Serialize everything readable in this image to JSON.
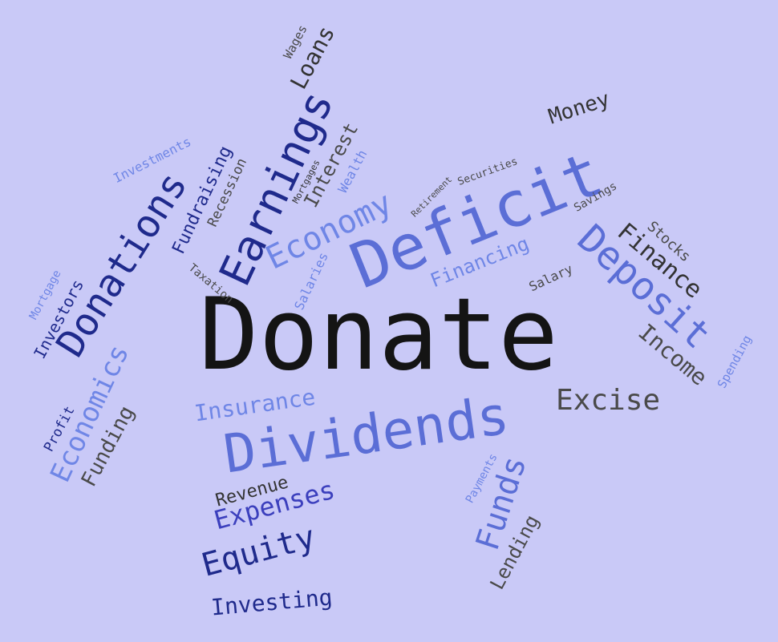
{
  "colors": {
    "background": "#c9c9f7",
    "black": "#141414",
    "navy": "#1f2a8c",
    "blue": "#3b3fbd",
    "mid": "#5b6ed6",
    "light": "#6f86e6",
    "gray": "#4a4a4a"
  },
  "words": {
    "donate": "Donate",
    "deficit": "Deficit",
    "dividends": "Dividends",
    "donations": "Donations",
    "earnings": "Earnings",
    "economy": "Economy",
    "deposit": "Deposit",
    "economics": "Economics",
    "funds": "Funds",
    "excise": "Excise",
    "finance": "Finance",
    "income": "Income",
    "money": "Money",
    "loans": "Loans",
    "wages": "Wages",
    "interest": "Interest",
    "wealth": "Wealth",
    "fundraising": "Fundraising",
    "recession": "Recession",
    "investments": "Investments",
    "mortgages": "Mortgages",
    "retirement": "Retirement",
    "securities": "Securities",
    "savings": "Savings",
    "stocks": "Stocks",
    "financing": "Financing",
    "salary": "Salary",
    "salaries": "Salaries",
    "taxation": "Taxation",
    "mortgage": "Mortgage",
    "investors": "Investors",
    "profit": "Profit",
    "funding": "Funding",
    "insurance": "Insurance",
    "revenue": "Revenue",
    "expenses": "Expenses",
    "equity": "Equity",
    "investing": "Investing",
    "payments": "Payments",
    "lending": "Lending",
    "spending": "Spending"
  }
}
